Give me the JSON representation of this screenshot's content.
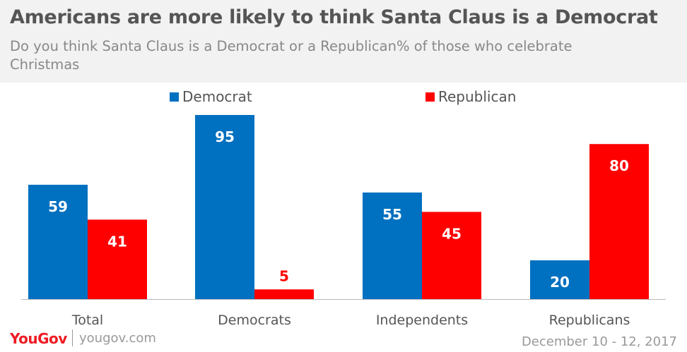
{
  "header": {
    "title": "Americans are more likely to think Santa Claus is a Democrat",
    "subtitle": "Do you think Santa Claus is a Democrat or a Republican% of those who celebrate Christmas"
  },
  "colors": {
    "democrat": "#0070c0",
    "republican": "#ff0000",
    "header_bg": "#f2f2f2"
  },
  "chart_data": {
    "type": "bar",
    "categories": [
      "Total",
      "Democrats",
      "Independents",
      "Republicans"
    ],
    "series": [
      {
        "name": "Democrat",
        "color": "#0070c0",
        "values": [
          59,
          95,
          55,
          20
        ]
      },
      {
        "name": "Republican",
        "color": "#ff0000",
        "values": [
          41,
          5,
          45,
          80
        ]
      }
    ],
    "title": "Americans are more likely to think Santa Claus is a Democrat",
    "subtitle": "Do you think Santa Claus is a Democrat or a Republican% of those who celebrate Christmas",
    "ylim": [
      0,
      100
    ],
    "grid": false,
    "legend": "top"
  },
  "footer": {
    "brand_you": "You",
    "brand_gov": "Gov",
    "site": "yougov.com",
    "date": "December 10 - 12, 2017"
  }
}
